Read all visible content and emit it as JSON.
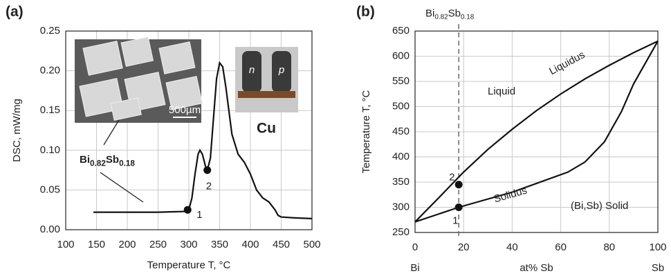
{
  "chart_data": [
    {
      "type": "line",
      "panel": "(a)",
      "xlabel": "Temperature T, °C",
      "ylabel": "DSC, mW/mg",
      "xlim": [
        100,
        500
      ],
      "xticks": [
        100,
        150,
        200,
        250,
        300,
        350,
        400,
        450,
        500
      ],
      "ylim": [
        0,
        0.25
      ],
      "yticks": [
        {
          "value": 0,
          "label": "0.00"
        },
        {
          "value": 0.05,
          "label": "0.05"
        },
        {
          "value": 0.1,
          "label": "0.10"
        },
        {
          "value": 0.15,
          "label": "0.15"
        },
        {
          "value": 0.2,
          "label": "0.20"
        },
        {
          "value": 0.25,
          "label": "0.25"
        }
      ],
      "grid": true,
      "series": [
        {
          "color": "#111111",
          "x": [
            145,
            200,
            250,
            295,
            300,
            305,
            310,
            315,
            318,
            322,
            327,
            330,
            335,
            340,
            345,
            350,
            355,
            360,
            365,
            370,
            380,
            390,
            400,
            410,
            420,
            430,
            440,
            445,
            450,
            470,
            500
          ],
          "values": [
            0.022,
            0.022,
            0.022,
            0.023,
            0.025,
            0.04,
            0.07,
            0.095,
            0.1,
            0.095,
            0.08,
            0.075,
            0.09,
            0.14,
            0.19,
            0.21,
            0.205,
            0.18,
            0.15,
            0.12,
            0.095,
            0.085,
            0.07,
            0.05,
            0.04,
            0.035,
            0.025,
            0.018,
            0.016,
            0.015,
            0.014
          ]
        }
      ],
      "points": {
        "x": [
          298,
          330
        ],
        "values": [
          0.025,
          0.075
        ],
        "labels": [
          "1",
          "2"
        ]
      },
      "formula": [
        "Bi",
        "0.82",
        "Sb",
        "0.18"
      ],
      "annotations": [
        "500µm",
        "n",
        "p",
        "Cu"
      ]
    },
    {
      "type": "line",
      "panel": "(b)",
      "ylabel": "Temperature T, °C",
      "categories": [
        "Bi",
        "at% Sb",
        "Sb"
      ],
      "xlim": [
        0,
        100
      ],
      "xticks": [
        0,
        20,
        40,
        60,
        80,
        100
      ],
      "ylim": [
        250,
        650
      ],
      "yticks": [
        250,
        300,
        350,
        400,
        450,
        500,
        550,
        600,
        650
      ],
      "grid": true,
      "series": [
        {
          "name": "Liquidus",
          "color": "#111111",
          "x": [
            0,
            10,
            20,
            30,
            40,
            50,
            60,
            70,
            80,
            90,
            100
          ],
          "values": [
            271,
            320,
            370,
            415,
            455,
            492,
            525,
            555,
            582,
            607,
            630
          ]
        },
        {
          "name": "Solidus",
          "color": "#111111",
          "x": [
            0,
            18,
            40,
            63,
            70,
            78,
            85,
            90,
            100
          ],
          "values": [
            271,
            300,
            330,
            370,
            390,
            430,
            490,
            545,
            630
          ]
        }
      ],
      "points": {
        "x": [
          18,
          18
        ],
        "values": [
          300,
          345
        ],
        "labels": [
          "1",
          "2"
        ]
      },
      "vline": 18,
      "formula": [
        "Bi",
        "0.82",
        "Sb",
        "0.18"
      ],
      "annotations": [
        "Liquid",
        "(Bi,Sb) Solid"
      ]
    }
  ]
}
